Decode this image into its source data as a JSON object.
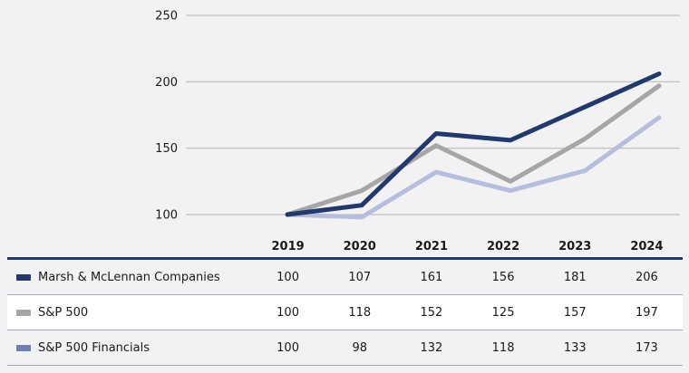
{
  "chart_data": {
    "type": "line",
    "categories": [
      "2019",
      "2020",
      "2021",
      "2022",
      "2023",
      "2024"
    ],
    "series": [
      {
        "name": "Marsh & McLennan Companies",
        "line_color": "#23396b",
        "swatch_color": "#22386a",
        "values": [
          100,
          107,
          161,
          156,
          181,
          206
        ]
      },
      {
        "name": "S&P 500",
        "line_color": "#a6a6a6",
        "swatch_color": "#a6a6a6",
        "values": [
          100,
          118,
          152,
          125,
          157,
          197
        ]
      },
      {
        "name": "S&P 500 Financials",
        "line_color": "#b7bedd",
        "swatch_color": "#6e7fb6",
        "values": [
          100,
          98,
          132,
          118,
          133,
          173
        ]
      }
    ],
    "yticks": [
      100,
      150,
      200,
      250
    ],
    "ylim": [
      100,
      250
    ],
    "grid": true,
    "legend_position": "table-rows-left",
    "title": "",
    "xlabel": "",
    "ylabel": ""
  },
  "style": {
    "page_bg": "#f2f2f4",
    "text_color": "#1a1a1a",
    "grid_color": "#b4b4b8",
    "axis_text_color": "#1a1a1a",
    "header_rule": "#22386a",
    "row_divider": "#9ea5c5",
    "row_white_bg": "#ffffff"
  }
}
